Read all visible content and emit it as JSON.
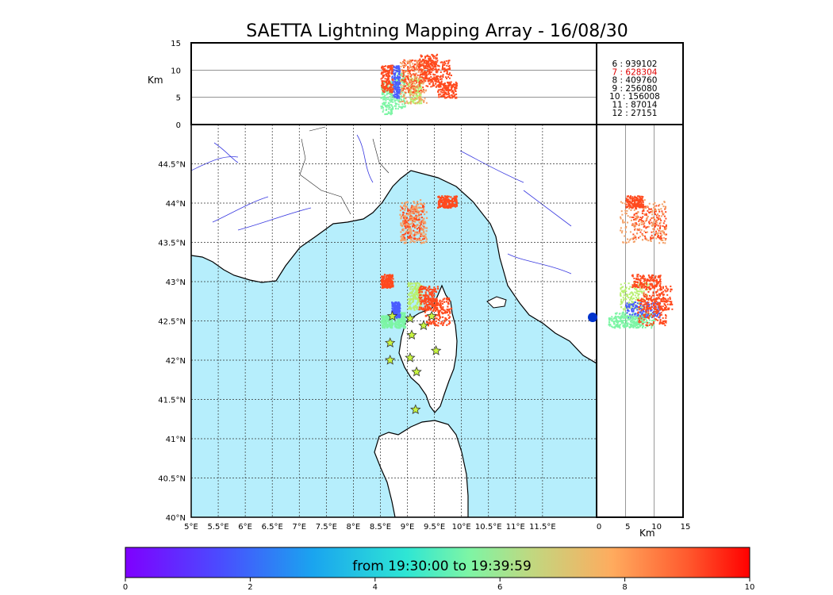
{
  "title": "SAETTA Lightning Mapping Array - 16/08/30",
  "colors": {
    "sea": "#b6eefc",
    "land": "#ffffff",
    "rivers": "#3a3ae0",
    "highlight_text": "#e00000"
  },
  "chart_data": {
    "type": "scatter",
    "xlim": [
      5,
      12.5
    ],
    "ylim": [
      40,
      45
    ],
    "x_ticks": [
      "5°E",
      "5.5°E",
      "6°E",
      "6.5°E",
      "7°E",
      "7.5°E",
      "8°E",
      "8.5°E",
      "9°E",
      "9.5°E",
      "10°E",
      "10.5°E",
      "11°E",
      "11.5°E"
    ],
    "y_ticks": [
      "40°N",
      "40.5°N",
      "41°N",
      "41.5°N",
      "42°N",
      "42.5°N",
      "43°N",
      "43.5°N",
      "44°N",
      "44.5°N"
    ],
    "grid": true,
    "alt_axis": {
      "label": "Km",
      "range": [
        0,
        15
      ],
      "ticks": [
        "0",
        "5",
        "10",
        "15"
      ]
    },
    "station_counts": [
      {
        "label": "6 :   939102",
        "highlight": false
      },
      {
        "label": "7 :   628304",
        "highlight": true
      },
      {
        "label": "8 :   409760",
        "highlight": false
      },
      {
        "label": "9 :   256080",
        "highlight": false
      },
      {
        "label": "10 :   156008",
        "highlight": false
      },
      {
        "label": "11 :    87014",
        "highlight": false
      },
      {
        "label": "12 :    27151",
        "highlight": false
      }
    ],
    "stations": [
      [
        8.72,
        42.56
      ],
      [
        9.05,
        42.53
      ],
      [
        9.45,
        42.56
      ],
      [
        9.3,
        42.44
      ],
      [
        8.68,
        42.22
      ],
      [
        9.08,
        42.32
      ],
      [
        8.68,
        42.0
      ],
      [
        9.05,
        42.03
      ],
      [
        9.53,
        42.12
      ],
      [
        9.17,
        41.85
      ],
      [
        9.15,
        41.37
      ]
    ],
    "clusters": [
      {
        "lon": [
          8.75,
          8.95
        ],
        "lat": [
          42.42,
          42.62
        ],
        "alt": [
          3,
          10
        ],
        "color": "#7df5a5"
      },
      {
        "lon": [
          9.0,
          9.25
        ],
        "lat": [
          42.65,
          43.0
        ],
        "alt": [
          4,
          9
        ],
        "color": "#b8f070"
      },
      {
        "lon": [
          8.7,
          8.85
        ],
        "lat": [
          42.55,
          42.75
        ],
        "alt": [
          5,
          11
        ],
        "color": "#4a5cff"
      },
      {
        "lon": [
          8.5,
          8.72
        ],
        "lat": [
          42.42,
          42.58
        ],
        "alt": [
          2,
          8
        ],
        "color": "#7df5a5"
      },
      {
        "lon": [
          8.5,
          8.72
        ],
        "lat": [
          42.93,
          43.1
        ],
        "alt": [
          6,
          11
        ],
        "color": "#ff4a1e"
      },
      {
        "lon": [
          8.88,
          9.3
        ],
        "lat": [
          43.55,
          43.98
        ],
        "alt": [
          6,
          12
        ],
        "color": "#ff4a1e"
      },
      {
        "lon": [
          8.85,
          9.35
        ],
        "lat": [
          43.5,
          44.05
        ],
        "alt": [
          4,
          12
        ],
        "color": "#f4a066"
      },
      {
        "lon": [
          9.3,
          9.8
        ],
        "lat": [
          42.45,
          42.8
        ],
        "alt": [
          7,
          12
        ],
        "color": "#ff4a1e"
      },
      {
        "lon": [
          9.2,
          9.55
        ],
        "lat": [
          42.65,
          42.95
        ],
        "alt": [
          8,
          13
        ],
        "color": "#ff4a1e"
      },
      {
        "lon": [
          9.55,
          9.9
        ],
        "lat": [
          43.95,
          44.1
        ],
        "alt": [
          5,
          8
        ],
        "color": "#ff4a1e"
      }
    ],
    "colorbar": {
      "label": "from 19:30:00 to 19:39:59",
      "range": [
        0,
        10
      ],
      "ticks": [
        "0",
        "2",
        "4",
        "6",
        "8",
        "10"
      ]
    }
  }
}
